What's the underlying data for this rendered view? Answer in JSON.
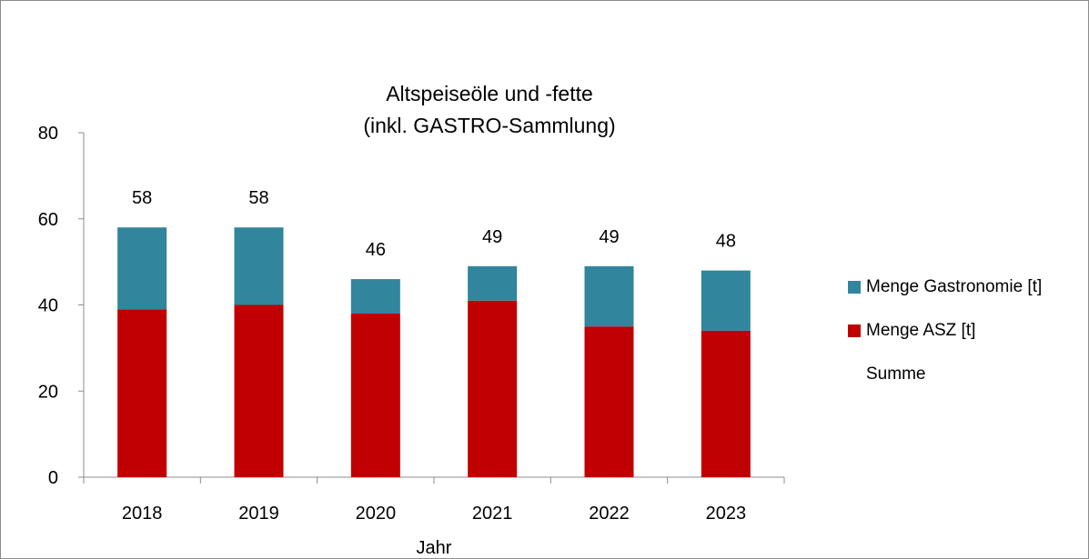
{
  "chart_data": {
    "type": "bar",
    "stacked": true,
    "title": "Altspeiseöle und -fette\n(inkl. GASTRO-Sammlung)",
    "xlabel": "Jahr",
    "ylabel": "",
    "ylim": [
      0,
      80
    ],
    "yticks": [
      0,
      20,
      40,
      60,
      80
    ],
    "categories": [
      "2018",
      "2019",
      "2020",
      "2021",
      "2022",
      "2023"
    ],
    "series": [
      {
        "name": "Menge ASZ [t]",
        "color": "#c00000",
        "values": [
          39,
          40,
          38,
          41,
          35,
          34
        ]
      },
      {
        "name": "Menge Gastronomie [t]",
        "color": "#31859c",
        "values": [
          19,
          18,
          8,
          8,
          14,
          14
        ]
      }
    ],
    "totals": {
      "name": "Summe",
      "values": [
        58,
        58,
        46,
        49,
        49,
        48
      ]
    },
    "grid": false,
    "legend_position": "right"
  },
  "legend": [
    {
      "label": "Menge Gastronomie [t]",
      "color": "#31859c"
    },
    {
      "label": "Menge ASZ [t]",
      "color": "#c00000"
    },
    {
      "label": "Summe",
      "color": ""
    }
  ]
}
